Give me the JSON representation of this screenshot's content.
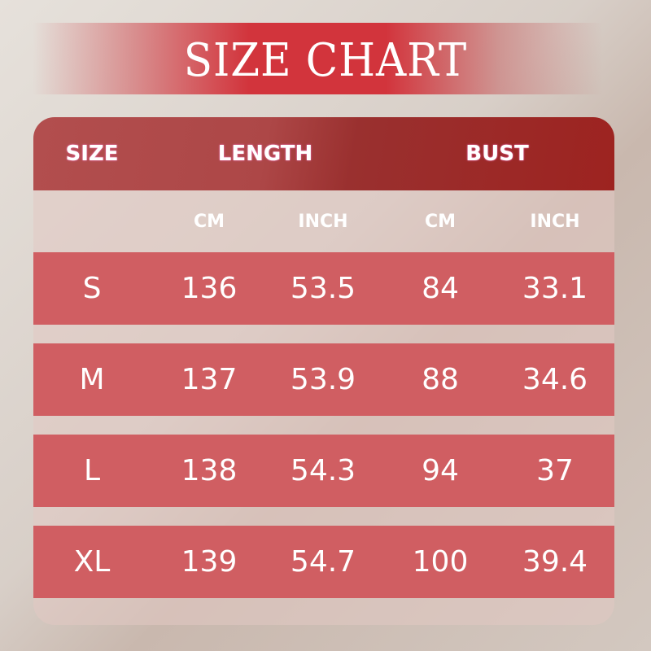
{
  "title": "SIZE CHART",
  "header": {
    "size": "SIZE",
    "length": "LENGTH",
    "bust": "BUST"
  },
  "subheader": [
    "CM",
    "INCH",
    "CM",
    "INCH"
  ],
  "rows": [
    [
      "S",
      "136",
      "53.5",
      "84",
      "33.1"
    ],
    [
      "M",
      "137",
      "53.9",
      "88",
      "34.6"
    ],
    [
      "L",
      "138",
      "54.3",
      "94",
      "37"
    ],
    [
      "XL",
      "139",
      "54.7",
      "100",
      "39.4"
    ]
  ],
  "colors": {
    "title_band": "#d2343c",
    "header": "#a63a38",
    "row": "#d05e62"
  }
}
